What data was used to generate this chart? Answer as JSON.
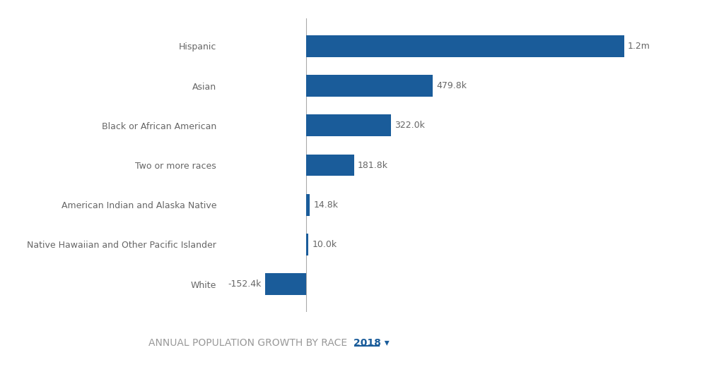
{
  "categories": [
    "Hispanic",
    "Asian",
    "Black or African American",
    "Two or more races",
    "American Indian and Alaska Native",
    "Native Hawaiian and Other Pacific Islander",
    "White"
  ],
  "values": [
    1200000,
    479800,
    322000,
    181800,
    14800,
    10000,
    -152400
  ],
  "labels": [
    "1.2m",
    "479.8k",
    "322.0k",
    "181.8k",
    "14.8k",
    "10.0k",
    "-152.4k"
  ],
  "bar_color": "#1A5C9A",
  "background_color": "#FFFFFF",
  "title": "ANNUAL POPULATION GROWTH BY RACE",
  "title_year": "2018",
  "title_fontsize": 10,
  "label_fontsize": 9,
  "category_fontsize": 9,
  "zero_line_color": "#AAAAAA",
  "text_color": "#666666",
  "year_color": "#1A5C9A",
  "xlim": [
    -300000,
    1380000
  ],
  "bar_height": 0.55
}
